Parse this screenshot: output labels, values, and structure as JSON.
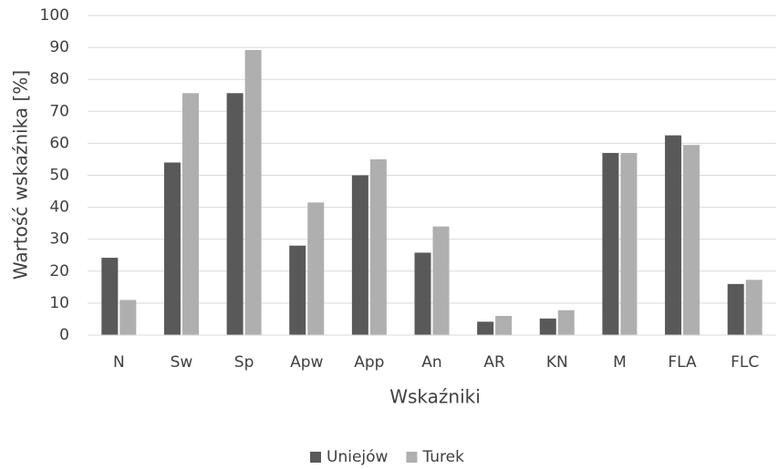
{
  "chart_data": {
    "type": "bar",
    "xlabel": "Wskaźniki",
    "ylabel": "Wartość wskaźnika [%]",
    "categories": [
      "N",
      "Sw",
      "Sp",
      "Apw",
      "App",
      "An",
      "AR",
      "KN",
      "M",
      "FLA",
      "FLC"
    ],
    "series": [
      {
        "name": "Uniejów",
        "color": "#595959",
        "values": [
          24.2,
          54,
          75.7,
          28,
          50,
          25.8,
          4.2,
          5.2,
          57,
          62.5,
          16
        ]
      },
      {
        "name": "Turek",
        "color": "#afafaf",
        "values": [
          11,
          75.7,
          89.2,
          41.5,
          55,
          34,
          6,
          7.8,
          57,
          59.5,
          17.3
        ]
      }
    ],
    "ylim": [
      0,
      100
    ],
    "yticks": [
      0,
      10,
      20,
      30,
      40,
      50,
      60,
      70,
      80,
      90,
      100
    ],
    "grid": true,
    "legend": "bottom"
  }
}
